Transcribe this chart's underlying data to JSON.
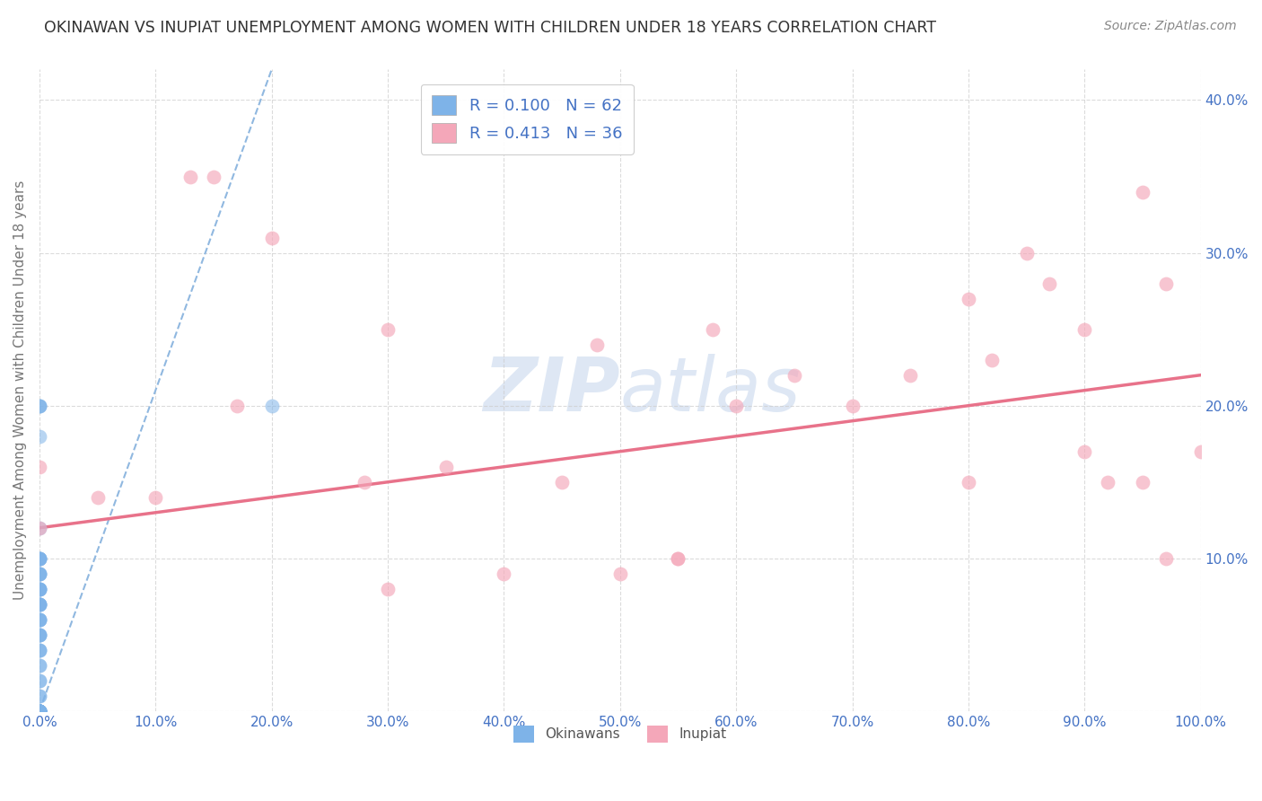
{
  "title": "OKINAWAN VS INUPIAT UNEMPLOYMENT AMONG WOMEN WITH CHILDREN UNDER 18 YEARS CORRELATION CHART",
  "source": "Source: ZipAtlas.com",
  "ylabel": "Unemployment Among Women with Children Under 18 years",
  "legend_label_1": "R = 0.100   N = 62",
  "legend_label_2": "R = 0.413   N = 36",
  "legend_entry_1": "Okinawans",
  "legend_entry_2": "Inupiat",
  "color_okinawan": "#7EB3E8",
  "color_inupiat": "#F4A7B9",
  "color_trend_okinawan": "#90B8E0",
  "color_trend_inupiat": "#E8728A",
  "color_tick_labels": "#4472C4",
  "watermark_color": "#C8D8EE",
  "xlim": [
    0.0,
    1.0
  ],
  "ylim": [
    0.0,
    0.42
  ],
  "xticks": [
    0.0,
    0.1,
    0.2,
    0.3,
    0.4,
    0.5,
    0.6,
    0.7,
    0.8,
    0.9,
    1.0
  ],
  "yticks": [
    0.0,
    0.1,
    0.2,
    0.3,
    0.4
  ],
  "xtick_labels": [
    "0.0%",
    "10.0%",
    "20.0%",
    "30.0%",
    "40.0%",
    "50.0%",
    "60.0%",
    "70.0%",
    "80.0%",
    "90.0%",
    "100.0%"
  ],
  "ytick_labels_right": [
    "",
    "10.0%",
    "20.0%",
    "30.0%",
    "40.0%"
  ],
  "okinawan_x": [
    0.0,
    0.0,
    0.0,
    0.0,
    0.0,
    0.0,
    0.0,
    0.0,
    0.0,
    0.0,
    0.0,
    0.0,
    0.0,
    0.0,
    0.0,
    0.0,
    0.0,
    0.0,
    0.0,
    0.0,
    0.0,
    0.0,
    0.0,
    0.0,
    0.0,
    0.0,
    0.0,
    0.0,
    0.0,
    0.0,
    0.0,
    0.0,
    0.0,
    0.0,
    0.0,
    0.0,
    0.0,
    0.0,
    0.0,
    0.0,
    0.0,
    0.0,
    0.0,
    0.0,
    0.0,
    0.0,
    0.0,
    0.0,
    0.0,
    0.0,
    0.0,
    0.0,
    0.0,
    0.0,
    0.0,
    0.0,
    0.0,
    0.0,
    0.0,
    0.0,
    0.0,
    0.2
  ],
  "okinawan_y": [
    0.0,
    0.0,
    0.0,
    0.0,
    0.0,
    0.0,
    0.0,
    0.0,
    0.0,
    0.0,
    0.0,
    0.0,
    0.0,
    0.0,
    0.0,
    0.0,
    0.0,
    0.0,
    0.0,
    0.0,
    0.01,
    0.01,
    0.02,
    0.02,
    0.03,
    0.03,
    0.04,
    0.04,
    0.04,
    0.05,
    0.05,
    0.05,
    0.05,
    0.06,
    0.06,
    0.06,
    0.06,
    0.07,
    0.07,
    0.07,
    0.07,
    0.07,
    0.08,
    0.08,
    0.08,
    0.08,
    0.08,
    0.09,
    0.09,
    0.09,
    0.09,
    0.1,
    0.1,
    0.1,
    0.1,
    0.1,
    0.12,
    0.18,
    0.2,
    0.2,
    0.2,
    0.2
  ],
  "inupiat_x": [
    0.0,
    0.0,
    0.05,
    0.1,
    0.13,
    0.15,
    0.2,
    0.28,
    0.3,
    0.35,
    0.4,
    0.45,
    0.5,
    0.55,
    0.55,
    0.6,
    0.65,
    0.7,
    0.75,
    0.8,
    0.82,
    0.85,
    0.87,
    0.9,
    0.9,
    0.92,
    0.95,
    0.97,
    1.0,
    0.3,
    0.17,
    0.48,
    0.58,
    0.8,
    0.95,
    0.97
  ],
  "inupiat_y": [
    0.12,
    0.16,
    0.14,
    0.14,
    0.35,
    0.35,
    0.31,
    0.15,
    0.25,
    0.16,
    0.09,
    0.15,
    0.09,
    0.1,
    0.1,
    0.2,
    0.22,
    0.2,
    0.22,
    0.15,
    0.23,
    0.3,
    0.28,
    0.25,
    0.17,
    0.15,
    0.34,
    0.28,
    0.17,
    0.08,
    0.2,
    0.24,
    0.25,
    0.27,
    0.15,
    0.1
  ],
  "trend_okinawan_x0": 0.0,
  "trend_okinawan_y0": 0.0,
  "trend_okinawan_x1": 0.2,
  "trend_okinawan_y1": 0.42,
  "trend_inupiat_x0": 0.0,
  "trend_inupiat_y0": 0.12,
  "trend_inupiat_x1": 1.0,
  "trend_inupiat_y1": 0.22,
  "background_color": "#ffffff",
  "grid_color": "#cccccc",
  "title_color": "#333333",
  "source_color": "#888888"
}
